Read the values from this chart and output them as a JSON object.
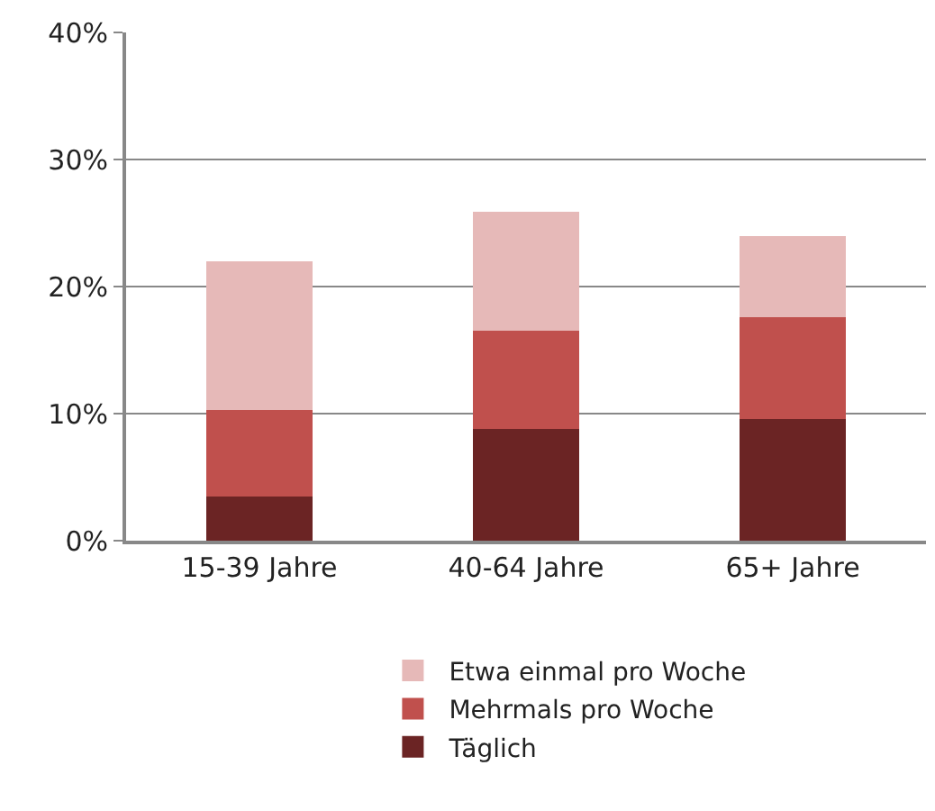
{
  "chart_data": {
    "type": "bar",
    "stacked": true,
    "categories": [
      "15-39 Jahre",
      "40-64 Jahre",
      "65+ Jahre"
    ],
    "series": [
      {
        "name": "Täglich",
        "color": "#6b2424",
        "values": [
          3.5,
          8.8,
          9.6
        ]
      },
      {
        "name": "Mehrmals pro Woche",
        "color": "#c0504d",
        "values": [
          6.8,
          7.7,
          8.0
        ]
      },
      {
        "name": "Etwa einmal pro Woche",
        "color": "#e6b9b8",
        "values": [
          11.7,
          9.4,
          6.4
        ]
      }
    ],
    "ylim": [
      0,
      40
    ],
    "yticks": [
      {
        "value": 0,
        "label": "0%"
      },
      {
        "value": 10,
        "label": "10%"
      },
      {
        "value": 20,
        "label": "20%"
      },
      {
        "value": 30,
        "label": "30%"
      },
      {
        "value": 40,
        "label": "40%"
      }
    ],
    "grid": "y",
    "legend": "bottom"
  }
}
